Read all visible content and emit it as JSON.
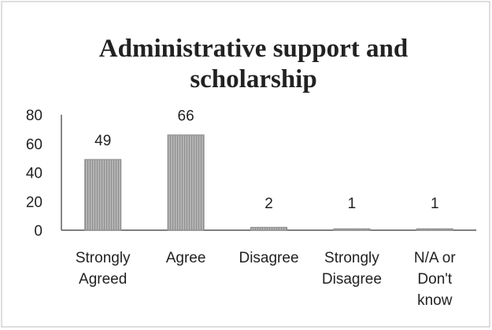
{
  "chart_data": {
    "type": "bar",
    "title_lines": [
      "Administrative support and",
      "scholarship"
    ],
    "categories": [
      [
        "Strongly",
        "Agreed"
      ],
      [
        "Agree"
      ],
      [
        "Disagree"
      ],
      [
        "Strongly",
        "Disagree"
      ],
      [
        "N/A or",
        "Don't",
        "know"
      ]
    ],
    "values": [
      49,
      66,
      2,
      1,
      1
    ],
    "ylim": [
      0,
      80
    ],
    "yticks": [
      0,
      20,
      40,
      60,
      80
    ],
    "grid": false,
    "legend": "none",
    "bar_color": "#a6a6a6"
  }
}
